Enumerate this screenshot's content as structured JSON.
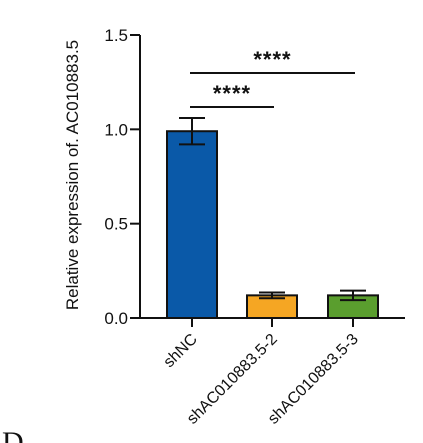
{
  "chart_data": {
    "type": "bar",
    "categories": [
      "shNC",
      "shAC010883.5-2",
      "shAC010883.5-3"
    ],
    "values": [
      0.99,
      0.12,
      0.12
    ],
    "errors": [
      0.07,
      0.015,
      0.025
    ],
    "colors": [
      "#0a59a8",
      "#f5a623",
      "#5a9e2e"
    ],
    "ylabel": "Relative expression of. AC010883.5",
    "ylim": [
      0,
      1.5
    ],
    "yticks": [
      0.0,
      0.5,
      1.0,
      1.5
    ],
    "ytick_labels": [
      "0.0",
      "0.5",
      "1.0",
      "1.5"
    ],
    "significance": [
      {
        "from": "shNC",
        "to": "shAC010883.5-2",
        "label": "****"
      },
      {
        "from": "shNC",
        "to": "shAC010883.5-3",
        "label": "****"
      }
    ],
    "panel_letter": "D",
    "grid": false
  }
}
